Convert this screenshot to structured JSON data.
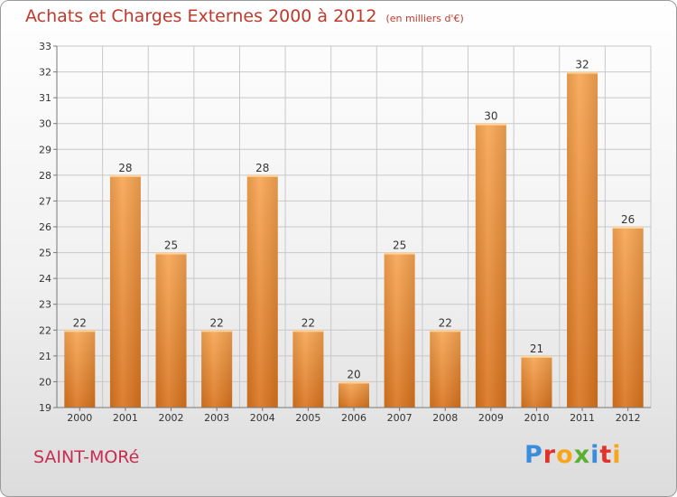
{
  "header": {
    "title": "Achats et Charges Externes 2000 à 2012",
    "subtitle": "(en milliers d'€)"
  },
  "footer": {
    "commune": "SAINT-MORé",
    "logo_letters": [
      "P",
      "r",
      "o",
      "x",
      "i",
      "t",
      "i"
    ],
    "logo_colors": [
      "#3a8ddc",
      "#e2332b",
      "#f7a619",
      "#5ab031",
      "#3a8ddc",
      "#e2332b",
      "#f7a619"
    ]
  },
  "chart_data": {
    "type": "bar",
    "title": "Achats et Charges Externes 2000 à 2012",
    "subtitle": "(en milliers d'€)",
    "categories": [
      "2000",
      "2001",
      "2002",
      "2003",
      "2004",
      "2005",
      "2006",
      "2007",
      "2008",
      "2009",
      "2010",
      "2011",
      "2012"
    ],
    "values": [
      22,
      28,
      25,
      22,
      28,
      22,
      20,
      25,
      22,
      30,
      21,
      32,
      26
    ],
    "data_labels": [
      "22",
      "28",
      "25",
      "22",
      "28",
      "22",
      "20",
      "25",
      "22",
      "30",
      "21",
      "32",
      "26"
    ],
    "ylim": [
      19,
      33
    ],
    "yticks": [
      19,
      20,
      21,
      22,
      23,
      24,
      25,
      26,
      27,
      28,
      29,
      30,
      31,
      32,
      33
    ],
    "xlabel": "",
    "ylabel": "",
    "grid": true,
    "bar_color_top": "#f7a552",
    "bar_color_bottom": "#d9731d"
  }
}
